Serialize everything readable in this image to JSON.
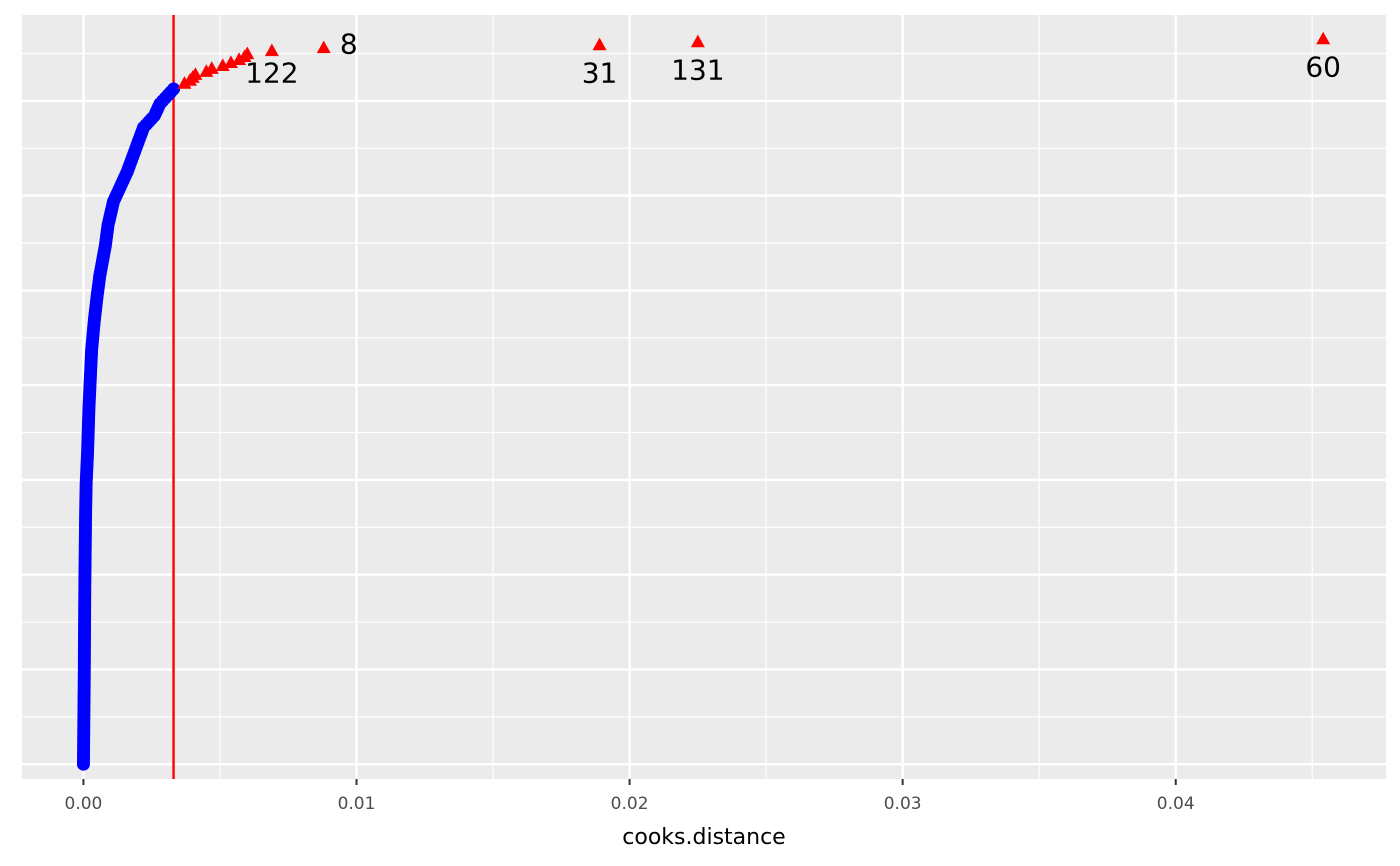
{
  "chart_data": {
    "type": "scatter",
    "xlabel": "cooks.distance",
    "ylabel": "",
    "xlim": [
      -0.00225,
      0.0477
    ],
    "ylim": [
      -5,
      253
    ],
    "x_ticks": [
      0.0,
      0.01,
      0.02,
      0.03,
      0.04
    ],
    "x_tick_labels": [
      "0.00",
      "0.01",
      "0.02",
      "0.03",
      "0.04"
    ],
    "x_minor_ticks": [
      0.005,
      0.015,
      0.025,
      0.035,
      0.045
    ],
    "y_gridlines": [
      0,
      32,
      64,
      96,
      128,
      160,
      192,
      224
    ],
    "grid": true,
    "background": "#ebebeb",
    "threshold": {
      "x": 0.0033,
      "color": "#ff0000"
    },
    "normal_points": {
      "color": "#0000ff",
      "shape": "circle",
      "count": 229,
      "x_max_reference": 0.0033
    },
    "outliers": {
      "color": "#ff0000",
      "shape": "triangle",
      "points": [
        {
          "x": 0.0037,
          "y": 230
        },
        {
          "x": 0.0039,
          "y": 231
        },
        {
          "x": 0.004,
          "y": 232
        },
        {
          "x": 0.0041,
          "y": 233
        },
        {
          "x": 0.0045,
          "y": 234
        },
        {
          "x": 0.0047,
          "y": 235
        },
        {
          "x": 0.0051,
          "y": 236
        },
        {
          "x": 0.0054,
          "y": 237
        },
        {
          "x": 0.0057,
          "y": 238
        },
        {
          "x": 0.0059,
          "y": 239
        },
        {
          "x": 0.006,
          "y": 240
        },
        {
          "x": 0.0069,
          "y": 241,
          "label": "122"
        },
        {
          "x": 0.0088,
          "y": 242,
          "label": "8"
        },
        {
          "x": 0.0189,
          "y": 243,
          "label": "31"
        },
        {
          "x": 0.0225,
          "y": 244,
          "label": "131"
        },
        {
          "x": 0.0454,
          "y": 245,
          "label": "60"
        }
      ]
    }
  }
}
